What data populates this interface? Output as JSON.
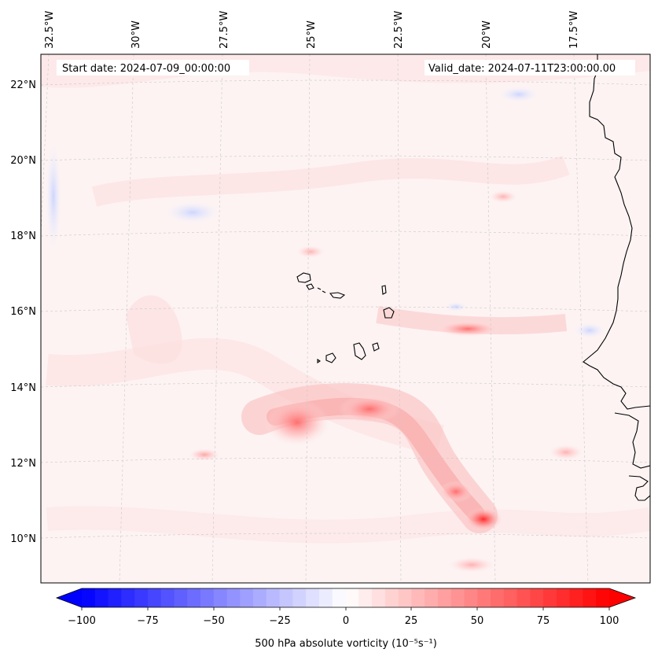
{
  "header": {
    "start_date": "Start date: 2024-07-09_00:00:00",
    "valid_date": "Valid_date: 2024-07-11T23:00:00.00"
  },
  "map": {
    "lon_labels": [
      "32.5°W",
      "30°W",
      "27.5°W",
      "25°W",
      "22.5°W",
      "20°W",
      "17.5°W"
    ],
    "lat_labels": [
      "22°N",
      "20°N",
      "18°N",
      "16°N",
      "14°N",
      "12°N",
      "10°N"
    ],
    "field": "500 hPa absolute vorticity",
    "features": [
      "Cape Verde islands",
      "West African coastline",
      "vorticity maximum near 13°N 26°W",
      "vorticity maximum near 10.5°N 20°W"
    ]
  },
  "colorbar": {
    "ticks": [
      "−100",
      "−75",
      "−50",
      "−25",
      "0",
      "25",
      "50",
      "75",
      "100"
    ],
    "label": "500 hPa absolute vorticity (10⁻⁵s⁻¹)",
    "colors": {
      "min": "#0000ff",
      "mid": "#ffffff",
      "max": "#ff0000"
    }
  }
}
